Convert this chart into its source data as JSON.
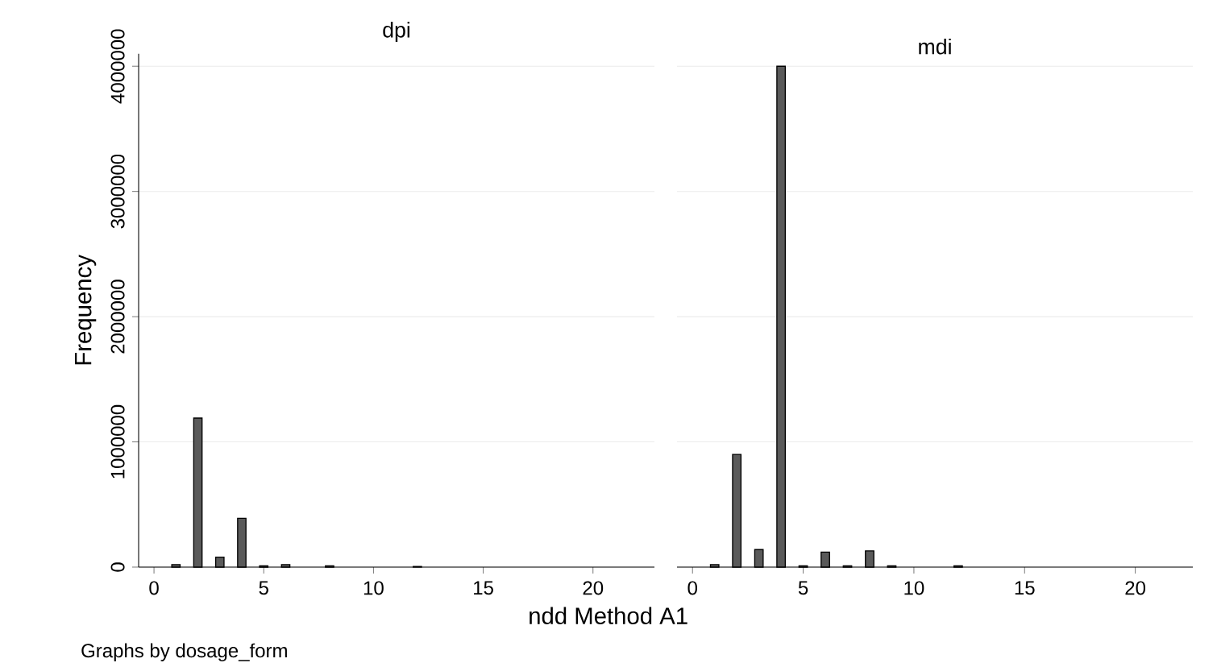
{
  "chart_data": [
    {
      "type": "bar",
      "title": "dpi",
      "xlabel": "ndd Method A1",
      "ylabel": "Frequency",
      "annotations": [
        "Graphs by dosage_form"
      ],
      "x": [
        1,
        2,
        3,
        4,
        5,
        6,
        8,
        12
      ],
      "values": [
        20000,
        1190000,
        80000,
        390000,
        10000,
        20000,
        10000,
        5000
      ],
      "color": "#5a5a5a",
      "xlim": [
        -0.7,
        22.8
      ],
      "ylim": [
        0,
        4100000
      ],
      "xticks": [
        0,
        5,
        10,
        15,
        20
      ],
      "yticks": [
        0,
        1000000,
        2000000,
        3000000,
        4000000
      ],
      "grid": "y"
    },
    {
      "type": "bar",
      "title": "mdi",
      "x": [
        1,
        2,
        3,
        4,
        5,
        6,
        7,
        8,
        9,
        12
      ],
      "values": [
        20000,
        900000,
        140000,
        4000000,
        10000,
        120000,
        10000,
        130000,
        10000,
        10000
      ],
      "color": "#5a5a5a",
      "xlim": [
        -0.7,
        22.6
      ],
      "ylim": [
        0,
        4000000
      ],
      "xticks": [
        0,
        5,
        10,
        15,
        20
      ],
      "yticks": [
        0,
        1000000,
        2000000,
        3000000,
        4000000
      ],
      "grid": "y",
      "tick_labels": "x"
    }
  ]
}
